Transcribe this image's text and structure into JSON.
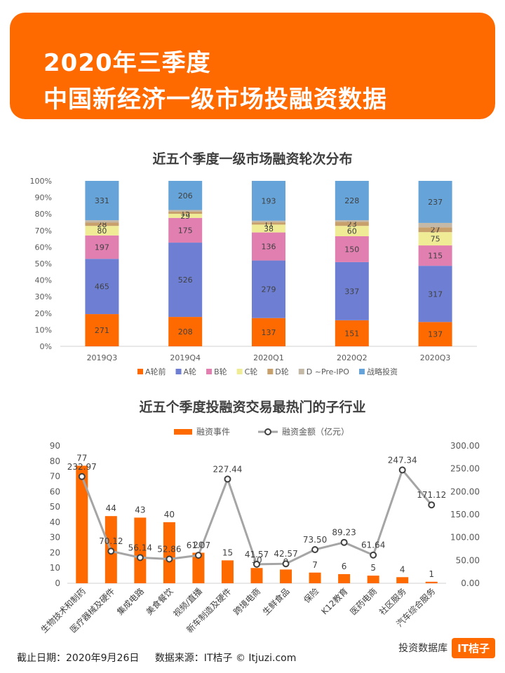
{
  "header": {
    "line1": "2020年三季度",
    "line2": "中国新经济一级市场投融资数据"
  },
  "footer": {
    "date": "截止日期：2020年9月26日",
    "source": "数据来源：IT桔子 © Itjuzi.com",
    "watermark": "投资数据库",
    "brand": "IT桔子"
  },
  "chart_data": [
    {
      "type": "bar",
      "stacked": "percent",
      "title": "近五个季度一级市场融资轮次分布",
      "categories": [
        "2019Q3",
        "2019Q4",
        "2020Q1",
        "2020Q2",
        "2020Q3"
      ],
      "ylim": [
        0,
        100
      ],
      "yticks": [
        "0%",
        "10%",
        "20%",
        "30%",
        "40%",
        "50%",
        "60%",
        "70%",
        "80%",
        "90%",
        "100%"
      ],
      "legend_position": "bottom",
      "grid": false,
      "series": [
        {
          "name": "A轮前",
          "color": "#ff6a00",
          "values": [
            271,
            208,
            137,
            151,
            137
          ]
        },
        {
          "name": "A轮",
          "color": "#6e7fd3",
          "values": [
            465,
            526,
            279,
            337,
            317
          ]
        },
        {
          "name": "B轮",
          "color": "#e07fb0",
          "values": [
            197,
            175,
            136,
            150,
            115
          ]
        },
        {
          "name": "C轮",
          "color": "#f0ec96",
          "values": [
            80,
            29,
            38,
            60,
            75
          ]
        },
        {
          "name": "D轮",
          "color": "#c8a06c",
          "values": [
            28,
            15,
            11,
            23,
            27
          ]
        },
        {
          "name": "D ~Pre-IPO",
          "color": "#c4b8a6",
          "values": [
            20,
            12,
            8,
            10,
            25
          ]
        },
        {
          "name": "战略投资",
          "color": "#65a3d8",
          "values": [
            331,
            206,
            193,
            228,
            237
          ]
        }
      ]
    },
    {
      "type": "bar",
      "combo": "bar+line",
      "title": "近五个季度投融资交易最热门的子行业",
      "categories": [
        "生物技术和制药",
        "医疗器械及硬件",
        "集成电路",
        "美食餐饮",
        "视频/直播",
        "新车制造及硬件",
        "跨境电商",
        "生鲜食品",
        "保险",
        "K12教育",
        "医药电商",
        "社区服务",
        "汽车综合服务"
      ],
      "legend_position": "top",
      "grid": false,
      "series": [
        {
          "name": "融资事件",
          "type": "bar",
          "axis": "left",
          "color": "#ff6a00",
          "values": [
            77,
            44,
            43,
            40,
            20,
            15,
            10,
            9,
            7,
            6,
            5,
            4,
            1
          ]
        },
        {
          "name": "融资金额（亿元）",
          "type": "line",
          "axis": "right",
          "color": "#a5a5a5",
          "values": [
            232.97,
            70.12,
            56.14,
            52.86,
            61.07,
            227.44,
            41.57,
            42.57,
            73.5,
            89.23,
            61.64,
            247.34,
            171.12
          ]
        }
      ],
      "y_left": {
        "lim": [
          0,
          90
        ],
        "ticks": [
          "0",
          "10",
          "20",
          "30",
          "40",
          "50",
          "60",
          "70",
          "80",
          "90"
        ]
      },
      "y_right": {
        "lim": [
          0,
          300
        ],
        "ticks": [
          "0.00",
          "50.00",
          "100.00",
          "150.00",
          "200.00",
          "250.00",
          "300.00"
        ]
      },
      "bar_labels": [
        "77",
        "44",
        "43",
        "40",
        "20",
        "15",
        "10",
        "9",
        "7",
        "6",
        "5",
        "4",
        "1"
      ],
      "line_labels": [
        "232.97",
        "70.12",
        "56.14",
        "52.86",
        "61.07",
        "227.44",
        "41.57",
        "42.57",
        "73.50",
        "89.23",
        "61.64",
        "247.34",
        "171.12"
      ]
    }
  ]
}
